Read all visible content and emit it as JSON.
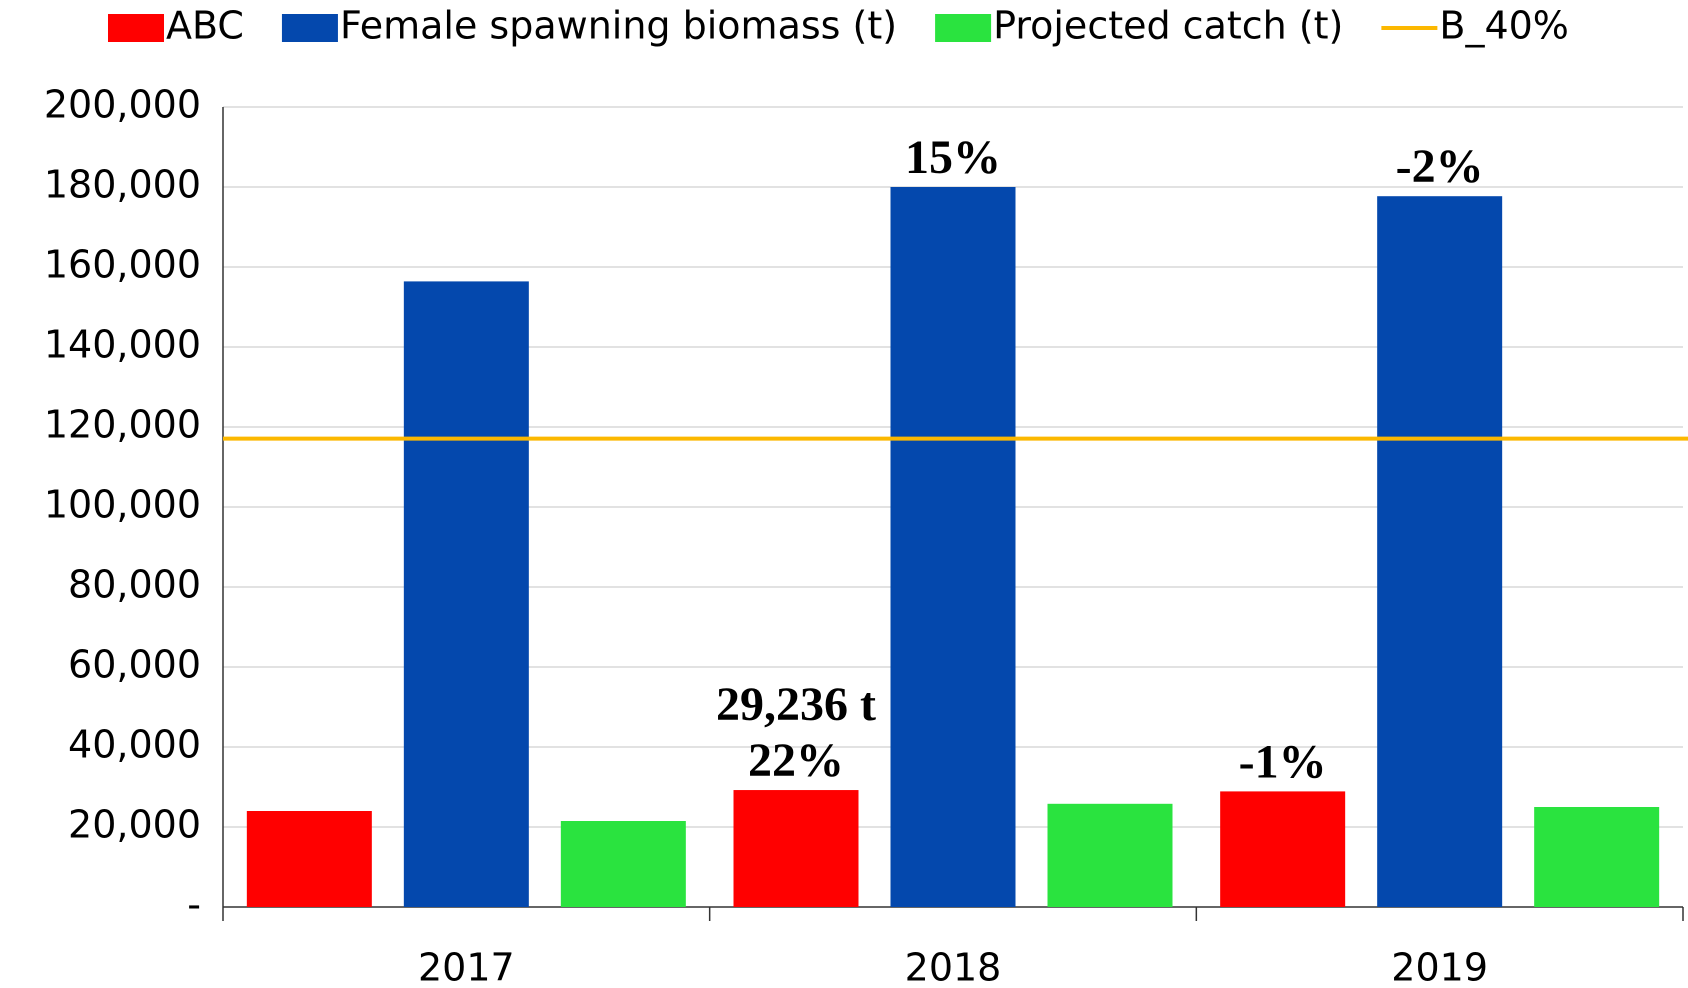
{
  "chart_data": {
    "type": "bar",
    "categories": [
      "2017",
      "2018",
      "2019"
    ],
    "series": [
      {
        "name": "ABC",
        "color": "#ff0000",
        "values": [
          24000,
          29236,
          28900
        ],
        "annotations": [
          null,
          [
            "29,236 t",
            "22%"
          ],
          [
            "-1%"
          ]
        ]
      },
      {
        "name": "Female spawning biomass (t)",
        "color": "#0448ad",
        "values": [
          156400,
          180000,
          177700
        ],
        "annotations": [
          null,
          [
            "15%"
          ],
          [
            "-2%"
          ]
        ]
      },
      {
        "name": "Projected catch (t)",
        "color": "#2ae33f",
        "values": [
          21500,
          25800,
          25000
        ],
        "annotations": [
          null,
          null,
          null
        ]
      }
    ],
    "reference_line": {
      "name": "B_40%",
      "color": "#fcb800",
      "value": 117100
    },
    "ylim": [
      0,
      200000
    ],
    "yticks": [
      {
        "value": 0,
        "label": "-"
      },
      {
        "value": 20000,
        "label": "20,000"
      },
      {
        "value": 40000,
        "label": "40,000"
      },
      {
        "value": 60000,
        "label": "60,000"
      },
      {
        "value": 80000,
        "label": "80,000"
      },
      {
        "value": 100000,
        "label": "100,000"
      },
      {
        "value": 120000,
        "label": "120,000"
      },
      {
        "value": 140000,
        "label": "140,000"
      },
      {
        "value": 160000,
        "label": "160,000"
      },
      {
        "value": 180000,
        "label": "180,000"
      },
      {
        "value": 200000,
        "label": "200,000"
      }
    ],
    "grid": true,
    "legend": "top"
  }
}
